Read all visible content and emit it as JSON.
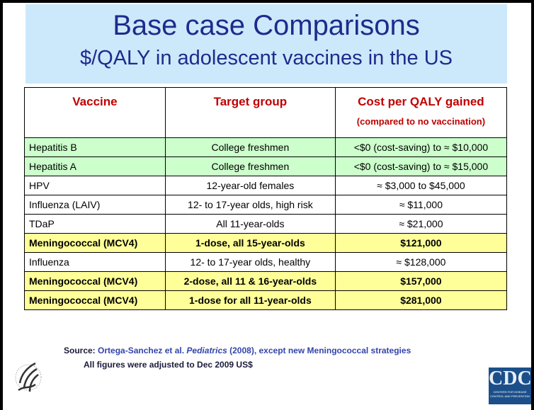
{
  "header": {
    "title": "Base case Comparisons",
    "subtitle": "$/QALY in adolescent vaccines in the US"
  },
  "table": {
    "columns": [
      "Vaccine",
      "Target group",
      "Cost per QALY gained"
    ],
    "column_note": "(compared to no vaccination)",
    "header_color": "#c00000",
    "rows": [
      {
        "cells": [
          "Hepatitis B",
          "College freshmen",
          "<$0 (cost-saving) to ≈ $10,000"
        ],
        "fill": "#ccffcc",
        "bold": false
      },
      {
        "cells": [
          "Hepatitis A",
          "College freshmen",
          "<$0 (cost-saving) to ≈ $15,000"
        ],
        "fill": "#ccffcc",
        "bold": false
      },
      {
        "cells": [
          "HPV",
          "12-year-old females",
          "≈ $3,000 to $45,000"
        ],
        "fill": "#ffffff",
        "bold": false
      },
      {
        "cells": [
          "Influenza (LAIV)",
          "12- to 17-year olds, high risk",
          "≈ $11,000"
        ],
        "fill": "#ffffff",
        "bold": false
      },
      {
        "cells": [
          "TDaP",
          "All 11-year-olds",
          "≈ $21,000"
        ],
        "fill": "#ffffff",
        "bold": false
      },
      {
        "cells": [
          "Meningococcal (MCV4)",
          "1-dose, all 15-year-olds",
          "$121,000"
        ],
        "fill": "#ffff99",
        "bold": true
      },
      {
        "cells": [
          "Influenza",
          "12- to 17-year olds, healthy",
          "≈ $128,000"
        ],
        "fill": "#ffffff",
        "bold": false
      },
      {
        "cells": [
          "Meningococcal (MCV4)",
          "2-dose, all 11 & 16-year-olds",
          "$157,000"
        ],
        "fill": "#ffff99",
        "bold": true
      },
      {
        "cells": [
          "Meningococcal (MCV4)",
          "1-dose for all 11-year-olds",
          "$281,000"
        ],
        "fill": "#ffff99",
        "bold": true
      }
    ]
  },
  "source": {
    "label": "Source:",
    "authors": "Ortega-Sanchez et al.",
    "journal": "Pediatrics",
    "rest": "(2008), except new Meningococcal strategies",
    "note": "All figures were adjusted to Dec 2009 US$"
  },
  "logo": {
    "text": "CDC",
    "subtext": "CENTERS FOR DISEASE CONTROL AND PREVENTION"
  }
}
